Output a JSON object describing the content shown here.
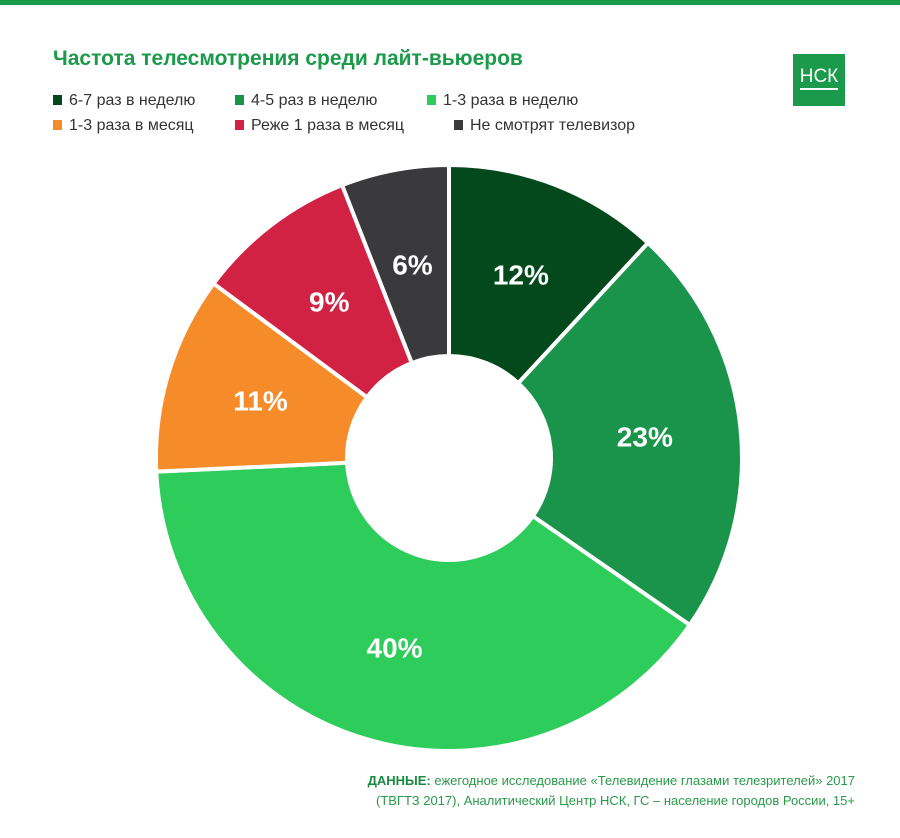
{
  "header": {
    "logo": "НСК"
  },
  "footer": {
    "label": "ДАННЫЕ:",
    "line1": "ежегодное исследование «Телевидение глазами телезрителей» 2017",
    "line2": "(ТВГТЗ 2017),  Аналитический Центр НСК, ГС – население городов России, 15+"
  },
  "chart_data": {
    "type": "pie",
    "title": "Частота телесмотрения среди лайт-вьюеров",
    "donut": true,
    "legend_position": "top-left",
    "categories": [
      "6-7 раз в неделю",
      "4-5 раз в неделю",
      "1-3 раза в неделю",
      "1-3 раза в месяц",
      "Реже 1 раза в месяц",
      "Не смотрят телевизор"
    ],
    "values": [
      12,
      23,
      40,
      11,
      9,
      6
    ],
    "labels": [
      "12%",
      "23%",
      "40%",
      "11%",
      "9%",
      "6%"
    ],
    "colors": [
      "#03491c",
      "#1a944a",
      "#2ecc5a",
      "#f68b2a",
      "#d22244",
      "#3a3a3c"
    ]
  }
}
